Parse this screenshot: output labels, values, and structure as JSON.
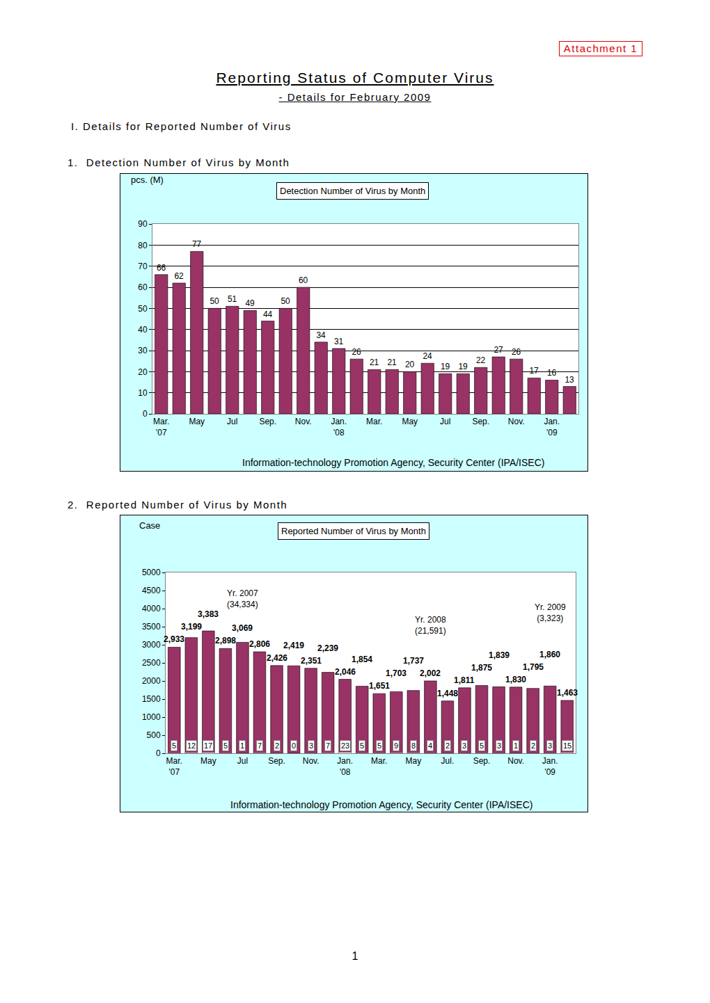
{
  "document": {
    "attachment": "Attachment 1",
    "title": "Reporting Status of Computer Virus",
    "subtitle": "- Details for February 2009",
    "section": "I. Details for Reported Number of Virus",
    "page": "1"
  },
  "chart_data": [
    {
      "heading": "1.  Detection Number of Virus by Month",
      "type": "bar",
      "title": "Detection Number of Virus by Month",
      "y_label": "pcs. (M)",
      "source": "Information-technology Promotion Agency, Security Center (IPA/ISEC)",
      "categories": [
        "Mar.\n'07",
        null,
        "May",
        null,
        "Jul",
        null,
        "Sep.",
        null,
        "Nov.",
        null,
        "Jan.\n'08",
        null,
        "Mar.",
        null,
        "May",
        null,
        "Jul",
        null,
        "Sep.",
        null,
        "Nov.",
        null,
        "Jan.\n'09",
        null
      ],
      "values": [
        66,
        62,
        77,
        50,
        51,
        49,
        44,
        50,
        60,
        34,
        31,
        26,
        21,
        21,
        20,
        24,
        19,
        19,
        22,
        27,
        26,
        17,
        16,
        13
      ],
      "color": "#993366",
      "ylim": [
        0,
        90
      ],
      "yticks": [
        0,
        10,
        20,
        30,
        40,
        50,
        60,
        70,
        80,
        90
      ],
      "grid": true,
      "data_labels": true
    },
    {
      "heading": "2.  Reported Number of Virus by Month",
      "type": "bar",
      "title": "Reported Number of Virus by Month",
      "y_label": "Case",
      "source": "Information-technology Promotion Agency, Security Center (IPA/ISEC)",
      "categories": [
        "Mar.\n'07",
        null,
        "May",
        null,
        "Jul",
        null,
        "Sep.",
        null,
        "Nov.",
        null,
        "Jan.\n'08",
        null,
        "Mar.",
        null,
        "May",
        null,
        "Jul.",
        null,
        "Sep.",
        null,
        "Nov.",
        null,
        "Jan.\n'09",
        null
      ],
      "series": [
        {
          "color": "#993366",
          "values": [
            2933,
            3199,
            3383,
            2898,
            3069,
            2806,
            2426,
            2419,
            2351,
            2239,
            2046,
            1854,
            1651,
            1703,
            1737,
            2002,
            1448,
            1811,
            1875,
            1839,
            1830,
            1795,
            1860,
            1463
          ],
          "value_labels": [
            "2,933",
            "3,199",
            "3,383",
            "2,898",
            "3,069",
            "2,806",
            "2,426",
            "2,419",
            "2,351",
            "2,239",
            "2,046",
            "1,854",
            "1,651",
            "1,703",
            "1,737",
            "2,002",
            "1,448",
            "1,811",
            "1,875",
            "1,839",
            "1,830",
            "1,795",
            "1,860",
            "1,463"
          ]
        },
        {
          "color": "#ffffff",
          "values": [
            5,
            12,
            17,
            5,
            1,
            7,
            2,
            0,
            3,
            7,
            23,
            5,
            5,
            9,
            8,
            4,
            2,
            3,
            5,
            3,
            1,
            2,
            3,
            15
          ]
        }
      ],
      "annotations": [
        {
          "text": "Yr. 2007\n(34,334)",
          "x": 4,
          "y": 4270
        },
        {
          "text": "Yr. 2008\n(21,591)",
          "x": 15,
          "y": 3540
        },
        {
          "text": "Yr. 2009\n(3,323)",
          "x": 22,
          "y": 3880
        }
      ],
      "ylim": [
        0,
        5000
      ],
      "yticks": [
        0,
        500,
        1000,
        1500,
        2000,
        2500,
        3000,
        3500,
        4000,
        4500,
        5000
      ],
      "grid": false,
      "stacked": false,
      "data_labels": true
    }
  ]
}
